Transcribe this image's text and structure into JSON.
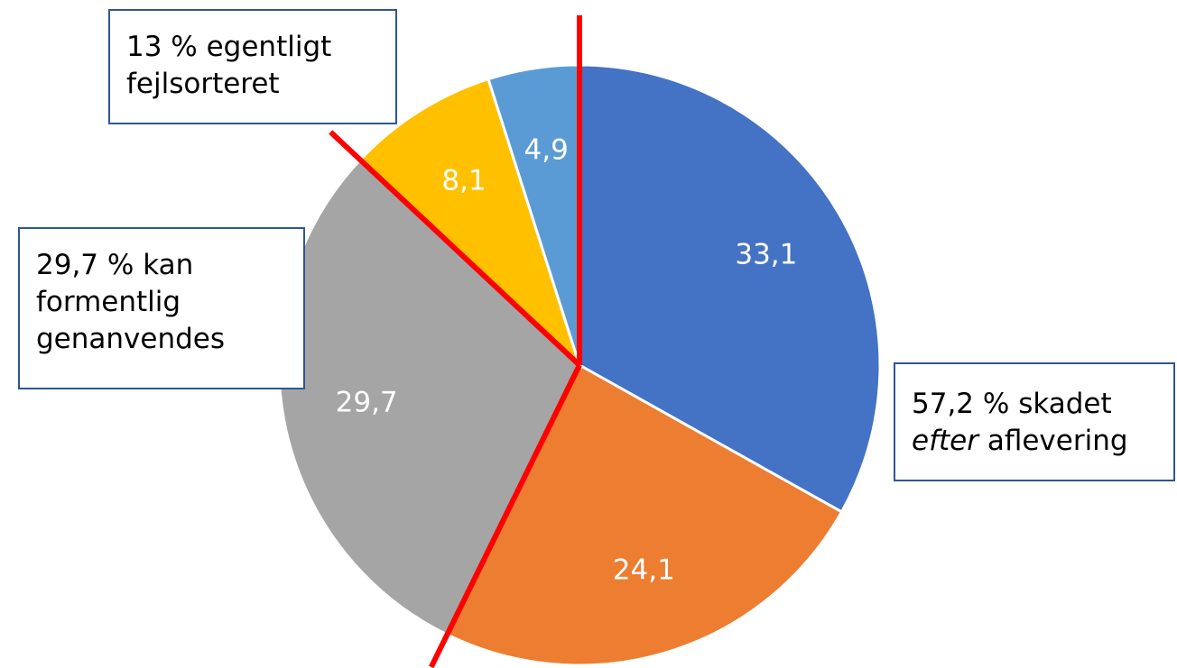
{
  "chart_data": {
    "type": "pie",
    "slices": [
      {
        "label": "33,1",
        "value": 33.1,
        "color": "#4472c4"
      },
      {
        "label": "24,1",
        "value": 24.1,
        "color": "#ed7d31"
      },
      {
        "label": "29,7",
        "value": 29.7,
        "color": "#a5a5a5"
      },
      {
        "label": "8,1",
        "value": 8.1,
        "color": "#ffc000"
      },
      {
        "label": "4,9",
        "value": 4.9,
        "color": "#5b9bd5"
      }
    ],
    "annotations": [
      {
        "name": "skadet",
        "line1_value": "57,2 % skadet",
        "line2_italic": "efter",
        "line2_rest": " aflevering"
      },
      {
        "name": "genanvendes",
        "lines": [
          "29,7 % kan",
          "formentlig",
          "genanvendes"
        ]
      },
      {
        "name": "fejlsorteret",
        "lines": [
          "13 % egentligt",
          "fejlsorteret"
        ]
      }
    ],
    "divider_color": "#ff0000"
  }
}
